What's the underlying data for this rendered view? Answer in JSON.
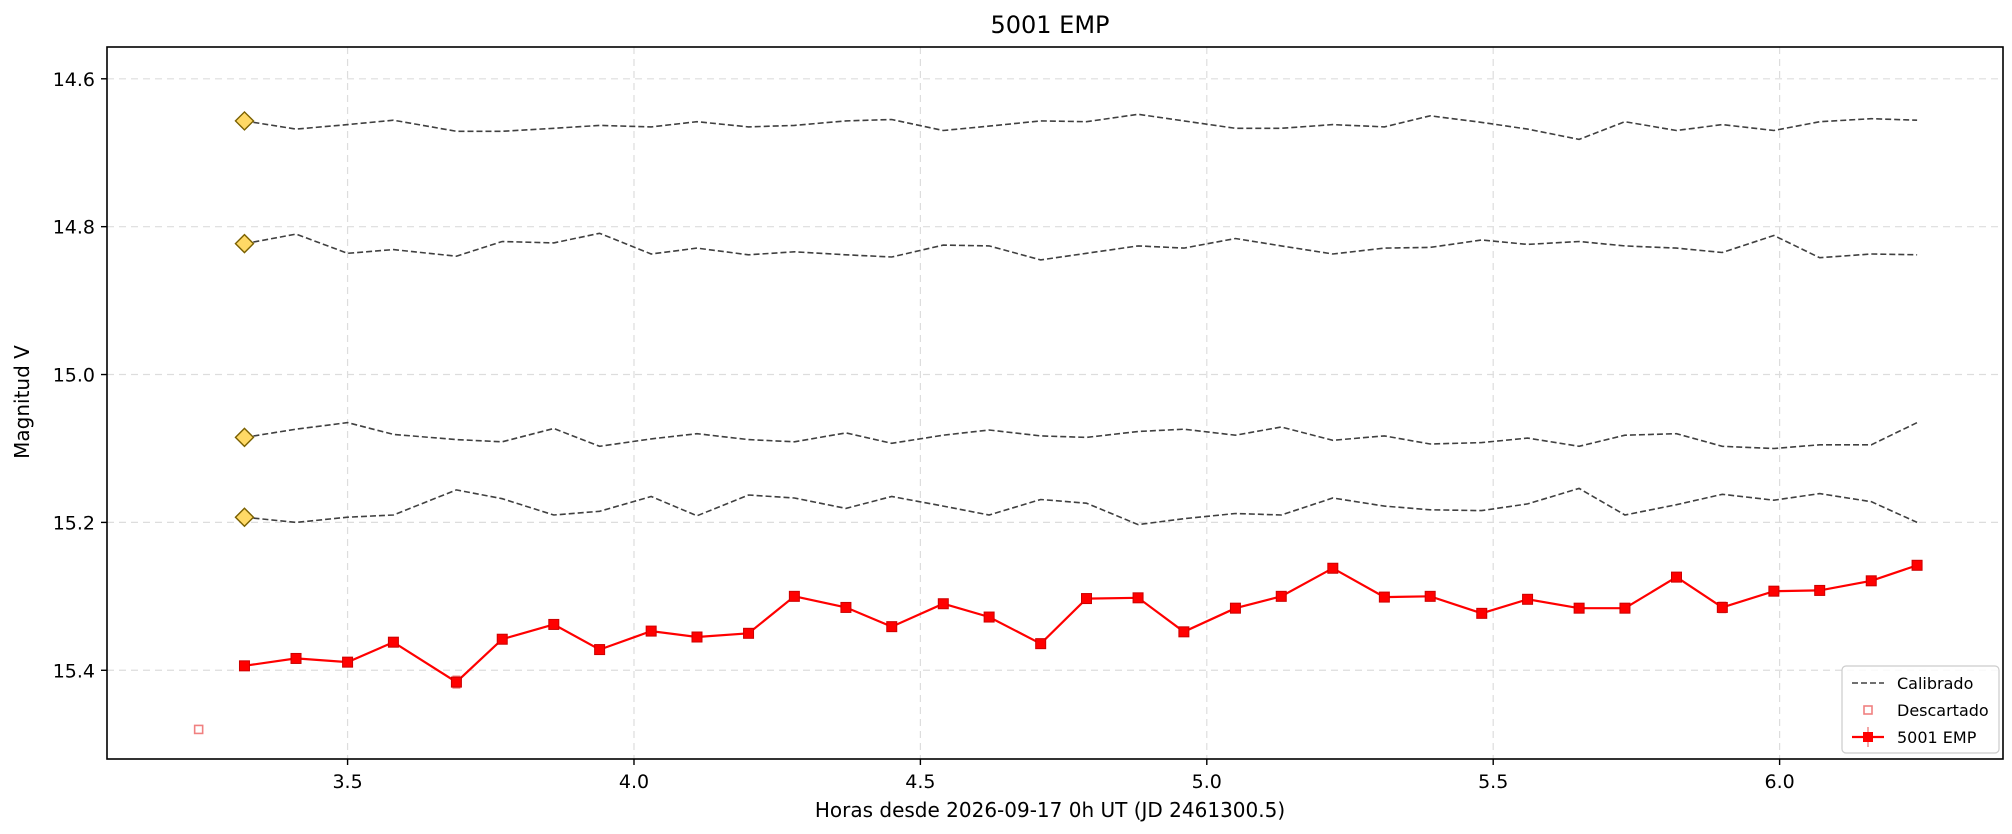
{
  "chart_data": {
    "type": "line",
    "title": "5001 EMP",
    "xlabel": "Horas desde 2026-09-17 0h UT (JD 2461300.5)",
    "ylabel": "Magnitud V",
    "xlim": [
      3.08,
      6.39
    ],
    "ylim": [
      15.52,
      14.557
    ],
    "y_inverted": true,
    "grid": true,
    "legend_position": "lower-right",
    "x_ticks": [
      3.5,
      4.0,
      4.5,
      5.0,
      5.5,
      6.0
    ],
    "x_tick_labels": [
      "3.5",
      "4.0",
      "4.5",
      "5.0",
      "5.5",
      "6.0"
    ],
    "y_ticks": [
      14.6,
      14.8,
      15.0,
      15.2,
      15.4
    ],
    "y_tick_labels": [
      "14.6",
      "14.8",
      "15.0",
      "15.2",
      "15.4"
    ],
    "colors": {
      "target": "#ff0000",
      "calibrated": "#404040",
      "discarded": "#f08080",
      "reference_marker_fill": "#ffd966",
      "reference_marker_edge": "#7a6000",
      "grid": "#dddddd"
    },
    "legend": [
      {
        "label": "Calibrado",
        "style": "dashed-line"
      },
      {
        "label": "Descartado",
        "style": "open-square"
      },
      {
        "label": "5001 EMP",
        "style": "line-square-errorbar"
      }
    ],
    "x": [
      3.32,
      3.41,
      3.5,
      3.58,
      3.69,
      3.77,
      3.86,
      3.94,
      4.03,
      4.11,
      4.2,
      4.28,
      4.37,
      4.45,
      4.54,
      4.62,
      4.71,
      4.79,
      4.88,
      4.96,
      5.05,
      5.13,
      5.22,
      5.31,
      5.39,
      5.48,
      5.56,
      5.65,
      5.73,
      5.82,
      5.9,
      5.99,
      6.07,
      6.16,
      6.24
    ],
    "series": [
      {
        "name": "Calibrado",
        "kind": "comparison",
        "values": [
          14.657,
          14.668,
          14.662,
          14.656,
          14.671,
          14.671,
          14.667,
          14.663,
          14.665,
          14.658,
          14.665,
          14.663,
          14.657,
          14.655,
          14.67,
          14.664,
          14.657,
          14.658,
          14.648,
          14.657,
          14.667,
          14.667,
          14.662,
          14.665,
          14.65,
          14.659,
          14.668,
          14.682,
          14.658,
          14.67,
          14.662,
          14.67,
          14.658,
          14.654,
          14.656
        ]
      },
      {
        "name": "Calibrado",
        "kind": "comparison",
        "values": [
          14.823,
          14.81,
          14.836,
          14.831,
          14.84,
          14.82,
          14.822,
          14.809,
          14.837,
          14.829,
          14.838,
          14.834,
          14.838,
          14.841,
          14.825,
          14.826,
          14.845,
          14.836,
          14.826,
          14.829,
          14.816,
          14.826,
          14.837,
          14.829,
          14.828,
          14.818,
          14.824,
          14.82,
          14.826,
          14.829,
          14.835,
          14.812,
          14.842,
          14.837,
          14.838
        ]
      },
      {
        "name": "Calibrado",
        "kind": "comparison",
        "values": [
          15.085,
          15.074,
          15.065,
          15.081,
          15.088,
          15.091,
          15.073,
          15.097,
          15.087,
          15.08,
          15.088,
          15.091,
          15.079,
          15.093,
          15.082,
          15.075,
          15.083,
          15.085,
          15.077,
          15.074,
          15.082,
          15.071,
          15.089,
          15.083,
          15.094,
          15.092,
          15.086,
          15.097,
          15.082,
          15.08,
          15.097,
          15.1,
          15.095,
          15.095,
          15.065
        ]
      },
      {
        "name": "Calibrado",
        "kind": "comparison",
        "values": [
          15.193,
          15.2,
          15.193,
          15.19,
          15.156,
          15.168,
          15.19,
          15.185,
          15.165,
          15.191,
          15.163,
          15.167,
          15.181,
          15.165,
          15.178,
          15.19,
          15.169,
          15.174,
          15.203,
          15.195,
          15.188,
          15.19,
          15.167,
          15.178,
          15.183,
          15.184,
          15.175,
          15.154,
          15.19,
          15.176,
          15.162,
          15.17,
          15.161,
          15.172,
          15.2
        ]
      },
      {
        "name": "5001 EMP",
        "kind": "target",
        "values": [
          15.394,
          15.384,
          15.389,
          15.362,
          15.416,
          15.358,
          15.338,
          15.372,
          15.347,
          15.355,
          15.35,
          15.3,
          15.315,
          15.341,
          15.31,
          15.328,
          15.364,
          15.303,
          15.302,
          15.348,
          15.316,
          15.3,
          15.262,
          15.301,
          15.3,
          15.323,
          15.304,
          15.316,
          15.316,
          15.274,
          15.315,
          15.293,
          15.292,
          15.279,
          15.258
        ],
        "errors": [
          0.005,
          0.004,
          0.004,
          0.004,
          0.008,
          0.004,
          0.004,
          0.004,
          0.004,
          0.005,
          0.004,
          0.004,
          0.004,
          0.004,
          0.004,
          0.004,
          0.005,
          0.004,
          0.004,
          0.004,
          0.004,
          0.004,
          0.004,
          0.005,
          0.004,
          0.004,
          0.004,
          0.006,
          0.005,
          0.006,
          0.007,
          0.004,
          0.005,
          0.006,
          0.005
        ]
      }
    ],
    "reference_markers": [
      {
        "x": 3.32,
        "y": 14.657
      },
      {
        "x": 3.32,
        "y": 14.823
      },
      {
        "x": 3.32,
        "y": 15.085
      },
      {
        "x": 3.32,
        "y": 15.193
      }
    ],
    "discarded_points": [
      {
        "x": 3.24,
        "y": 15.48
      }
    ]
  }
}
